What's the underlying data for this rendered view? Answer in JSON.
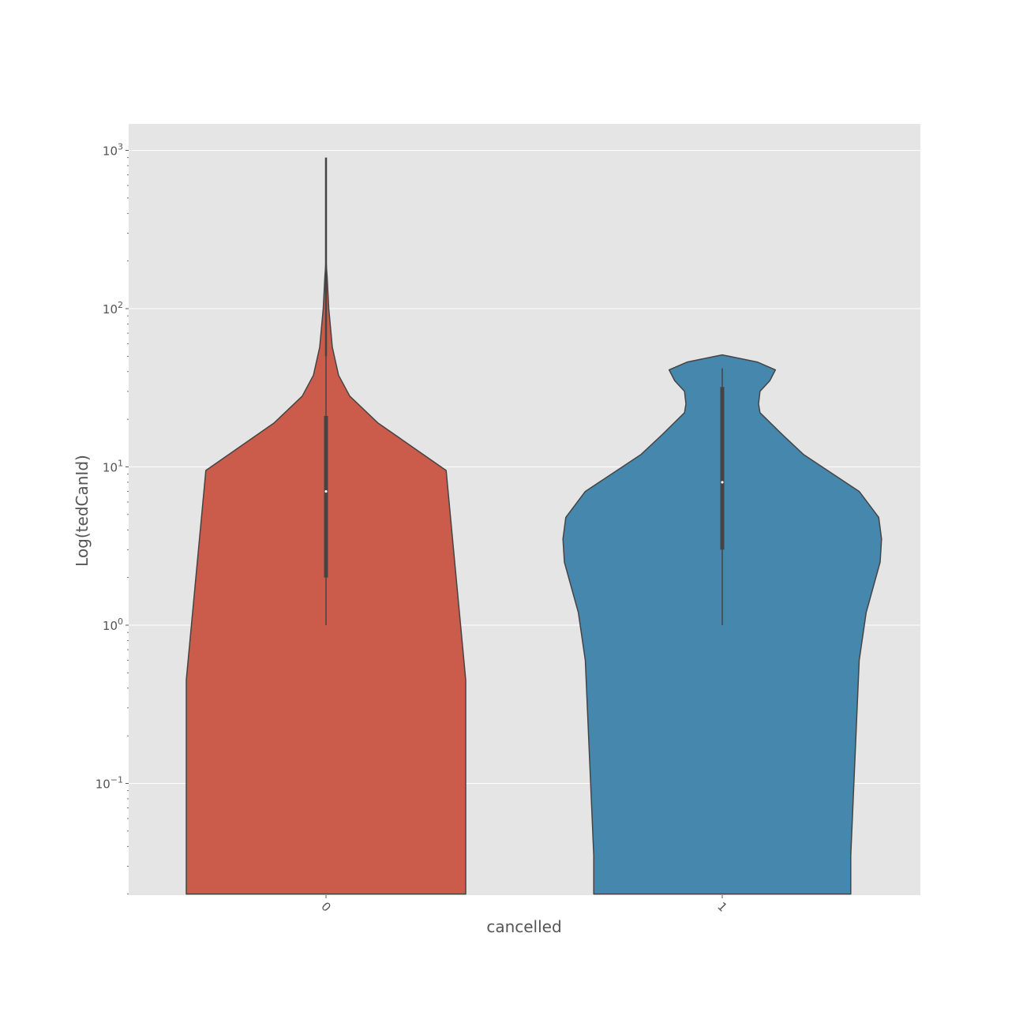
{
  "chart_data": {
    "type": "violin",
    "title": "",
    "xlabel": "cancelled",
    "ylabel": "Log(tedCanId)",
    "yscale": "log",
    "ylim": [
      0.02,
      1400
    ],
    "grid": true,
    "categories": [
      "0",
      "1"
    ],
    "yticks": [
      {
        "value": 0.1,
        "base": "10",
        "exp": "−1"
      },
      {
        "value": 1,
        "base": "10",
        "exp": "0"
      },
      {
        "value": 10,
        "base": "10",
        "exp": "1"
      },
      {
        "value": 100,
        "base": "10",
        "exp": "2"
      },
      {
        "value": 1000,
        "base": "10",
        "exp": "3"
      }
    ],
    "series": [
      {
        "category": "0",
        "color": "#cb5b4a",
        "box": {
          "min": 1,
          "q1": 2,
          "median": 7,
          "q3": 21,
          "whisker_high": 50,
          "max": 900
        },
        "density": [
          {
            "y": 0.02,
            "w": 1.0
          },
          {
            "y": 0.45,
            "w": 1.0
          },
          {
            "y": 9.5,
            "w": 0.86
          },
          {
            "y": 19,
            "w": 0.37
          },
          {
            "y": 28,
            "w": 0.17
          },
          {
            "y": 38,
            "w": 0.09
          },
          {
            "y": 57,
            "w": 0.045
          },
          {
            "y": 100,
            "w": 0.02
          },
          {
            "y": 160,
            "w": 0.008
          },
          {
            "y": 200,
            "w": 0.0
          }
        ]
      },
      {
        "category": "1",
        "color": "#4587ad",
        "box": {
          "min": 1,
          "q1": 3,
          "median": 8,
          "q3": 32,
          "max": 42
        },
        "density": [
          {
            "y": 0.02,
            "w": 0.92
          },
          {
            "y": 0.035,
            "w": 0.92
          },
          {
            "y": 0.6,
            "w": 0.98
          },
          {
            "y": 1.2,
            "w": 1.03
          },
          {
            "y": 2.5,
            "w": 1.13
          },
          {
            "y": 3.5,
            "w": 1.14
          },
          {
            "y": 4.8,
            "w": 1.12
          },
          {
            "y": 7,
            "w": 0.98
          },
          {
            "y": 12,
            "w": 0.58
          },
          {
            "y": 16,
            "w": 0.43
          },
          {
            "y": 22,
            "w": 0.27
          },
          {
            "y": 25,
            "w": 0.26
          },
          {
            "y": 30,
            "w": 0.27
          },
          {
            "y": 35,
            "w": 0.34
          },
          {
            "y": 41,
            "w": 0.38
          },
          {
            "y": 46,
            "w": 0.25
          },
          {
            "y": 50,
            "w": 0.05
          },
          {
            "y": 51,
            "w": 0.0
          }
        ]
      }
    ]
  }
}
